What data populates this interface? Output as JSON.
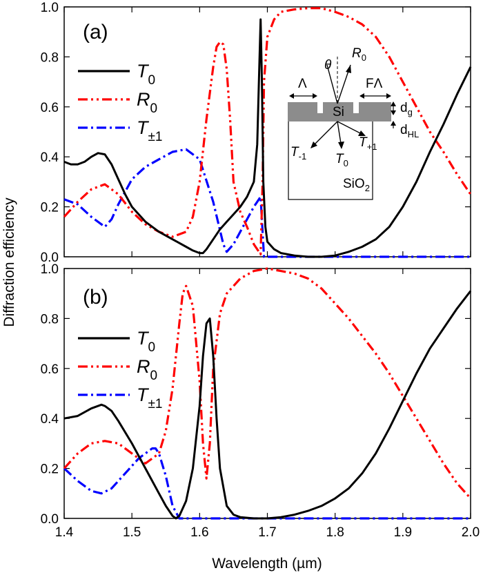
{
  "chart_data": {
    "type": "line",
    "ylabel": "Diffraction efficiency",
    "xlabel": "Wavelength (µm)",
    "xlim": [
      1.4,
      2.0
    ],
    "ylim": [
      0.0,
      1.0
    ],
    "xticks": [
      "1.4",
      "1.5",
      "1.6",
      "1.7",
      "1.8",
      "1.9",
      "2.0"
    ],
    "yticks": [
      "0.0",
      "0.2",
      "0.4",
      "0.6",
      "0.8",
      "1.0"
    ],
    "series_style": {
      "T0": {
        "color": "#000000",
        "dash": "solid"
      },
      "R0": {
        "color": "#ff0000",
        "dash": "dash-dot-dot"
      },
      "T±1": {
        "color": "#0000ff",
        "dash": "dash-dot"
      }
    },
    "panels": [
      {
        "label": "(a)",
        "legend": [
          {
            "symbol": "T",
            "sub": "0"
          },
          {
            "symbol": "R",
            "sub": "0"
          },
          {
            "symbol": "T",
            "sub": "±1"
          }
        ],
        "series": [
          {
            "name": "T0",
            "x": [
              1.4,
              1.41,
              1.42,
              1.43,
              1.44,
              1.45,
              1.46,
              1.47,
              1.48,
              1.49,
              1.5,
              1.52,
              1.54,
              1.56,
              1.58,
              1.59,
              1.6,
              1.605,
              1.61,
              1.62,
              1.63,
              1.64,
              1.65,
              1.66,
              1.67,
              1.68,
              1.685,
              1.688,
              1.69,
              1.692,
              1.694,
              1.697,
              1.7,
              1.71,
              1.72,
              1.74,
              1.76,
              1.78,
              1.8,
              1.82,
              1.84,
              1.86,
              1.88,
              1.9,
              1.92,
              1.94,
              1.96,
              1.98,
              2.0
            ],
            "y": [
              0.38,
              0.37,
              0.37,
              0.38,
              0.4,
              0.415,
              0.41,
              0.37,
              0.31,
              0.25,
              0.2,
              0.14,
              0.1,
              0.07,
              0.04,
              0.025,
              0.015,
              0.015,
              0.03,
              0.07,
              0.11,
              0.14,
              0.17,
              0.2,
              0.24,
              0.3,
              0.45,
              0.75,
              0.95,
              0.7,
              0.3,
              0.12,
              0.06,
              0.03,
              0.015,
              0.005,
              0.0,
              0.0,
              0.005,
              0.02,
              0.04,
              0.07,
              0.12,
              0.2,
              0.3,
              0.42,
              0.53,
              0.65,
              0.76
            ]
          },
          {
            "name": "R0",
            "x": [
              1.4,
              1.42,
              1.44,
              1.46,
              1.48,
              1.5,
              1.52,
              1.54,
              1.56,
              1.58,
              1.59,
              1.6,
              1.61,
              1.62,
              1.625,
              1.63,
              1.635,
              1.64,
              1.645,
              1.65,
              1.66,
              1.67,
              1.68,
              1.69,
              1.693,
              1.695,
              1.7,
              1.71,
              1.72,
              1.74,
              1.76,
              1.78,
              1.8,
              1.82,
              1.84,
              1.86,
              1.88,
              1.9,
              1.92,
              1.94,
              1.96,
              1.98,
              2.0
            ],
            "y": [
              0.16,
              0.22,
              0.27,
              0.29,
              0.25,
              0.18,
              0.13,
              0.1,
              0.08,
              0.1,
              0.16,
              0.3,
              0.55,
              0.76,
              0.84,
              0.86,
              0.85,
              0.75,
              0.55,
              0.3,
              0.18,
              0.12,
              0.05,
              0.01,
              0.3,
              0.7,
              0.88,
              0.95,
              0.98,
              0.99,
              0.995,
              0.995,
              0.98,
              0.96,
              0.93,
              0.88,
              0.8,
              0.7,
              0.6,
              0.5,
              0.42,
              0.33,
              0.25
            ]
          },
          {
            "name": "T±1",
            "x": [
              1.4,
              1.42,
              1.44,
              1.46,
              1.47,
              1.48,
              1.5,
              1.52,
              1.54,
              1.56,
              1.58,
              1.6,
              1.62,
              1.635,
              1.64,
              1.65,
              1.66,
              1.67,
              1.68,
              1.69,
              1.695,
              1.7,
              1.8,
              1.9,
              2.0
            ],
            "y": [
              0.23,
              0.21,
              0.16,
              0.12,
              0.15,
              0.21,
              0.31,
              0.36,
              0.39,
              0.42,
              0.43,
              0.39,
              0.22,
              0.05,
              0.02,
              0.05,
              0.1,
              0.15,
              0.2,
              0.24,
              0.0,
              0.0,
              0.0,
              0.0,
              0.0
            ]
          }
        ],
        "inset": {
          "theta": "θ",
          "period": "Λ",
          "fill_period": "FΛ",
          "si": "Si",
          "sio2": "SiO",
          "sio2_sub": "2",
          "r0": "R",
          "r0_sub": "0",
          "t0": "T",
          "t0_sub": "0",
          "tm1": "T",
          "tm1_sub": "-1",
          "tp1": "T",
          "tp1_sub": "+1",
          "dg": "d",
          "dg_sub": "g",
          "dhl": "d",
          "dhl_sub": "HL"
        }
      },
      {
        "label": "(b)",
        "legend": [
          {
            "symbol": "T",
            "sub": "0"
          },
          {
            "symbol": "R",
            "sub": "0"
          },
          {
            "symbol": "T",
            "sub": "±1"
          }
        ],
        "series": [
          {
            "name": "T0",
            "x": [
              1.4,
              1.42,
              1.44,
              1.455,
              1.46,
              1.47,
              1.48,
              1.5,
              1.52,
              1.54,
              1.55,
              1.56,
              1.565,
              1.57,
              1.58,
              1.59,
              1.6,
              1.605,
              1.61,
              1.615,
              1.62,
              1.625,
              1.63,
              1.64,
              1.65,
              1.66,
              1.68,
              1.7,
              1.72,
              1.74,
              1.76,
              1.78,
              1.8,
              1.82,
              1.84,
              1.86,
              1.88,
              1.9,
              1.92,
              1.94,
              1.96,
              1.98,
              2.0
            ],
            "y": [
              0.4,
              0.41,
              0.44,
              0.455,
              0.45,
              0.43,
              0.39,
              0.3,
              0.2,
              0.1,
              0.05,
              0.01,
              0.0,
              0.01,
              0.07,
              0.2,
              0.45,
              0.65,
              0.78,
              0.8,
              0.65,
              0.4,
              0.2,
              0.05,
              0.015,
              0.005,
              0.0,
              0.0,
              0.005,
              0.015,
              0.03,
              0.05,
              0.08,
              0.12,
              0.18,
              0.26,
              0.36,
              0.47,
              0.58,
              0.68,
              0.76,
              0.84,
              0.91
            ]
          },
          {
            "name": "R0",
            "x": [
              1.4,
              1.42,
              1.44,
              1.46,
              1.48,
              1.5,
              1.52,
              1.54,
              1.55,
              1.56,
              1.57,
              1.575,
              1.58,
              1.59,
              1.6,
              1.605,
              1.61,
              1.615,
              1.62,
              1.63,
              1.64,
              1.66,
              1.68,
              1.7,
              1.72,
              1.74,
              1.76,
              1.78,
              1.8,
              1.82,
              1.84,
              1.86,
              1.88,
              1.9,
              1.92,
              1.94,
              1.96,
              1.98,
              2.0
            ],
            "y": [
              0.2,
              0.26,
              0.3,
              0.31,
              0.3,
              0.26,
              0.22,
              0.26,
              0.35,
              0.52,
              0.78,
              0.9,
              0.93,
              0.85,
              0.55,
              0.3,
              0.16,
              0.3,
              0.6,
              0.82,
              0.9,
              0.96,
              0.99,
              1.0,
              0.99,
              0.98,
              0.96,
              0.92,
              0.86,
              0.8,
              0.73,
              0.66,
              0.58,
              0.49,
              0.4,
              0.31,
              0.22,
              0.14,
              0.08
            ]
          },
          {
            "name": "T±1",
            "x": [
              1.4,
              1.42,
              1.44,
              1.455,
              1.47,
              1.49,
              1.51,
              1.53,
              1.535,
              1.54,
              1.55,
              1.56,
              1.57,
              1.6,
              1.7,
              1.8,
              1.9,
              2.0
            ],
            "y": [
              0.2,
              0.15,
              0.11,
              0.1,
              0.12,
              0.18,
              0.24,
              0.28,
              0.28,
              0.26,
              0.17,
              0.05,
              0.0,
              0.0,
              0.0,
              0.0,
              0.0,
              0.0
            ]
          }
        ]
      }
    ]
  }
}
